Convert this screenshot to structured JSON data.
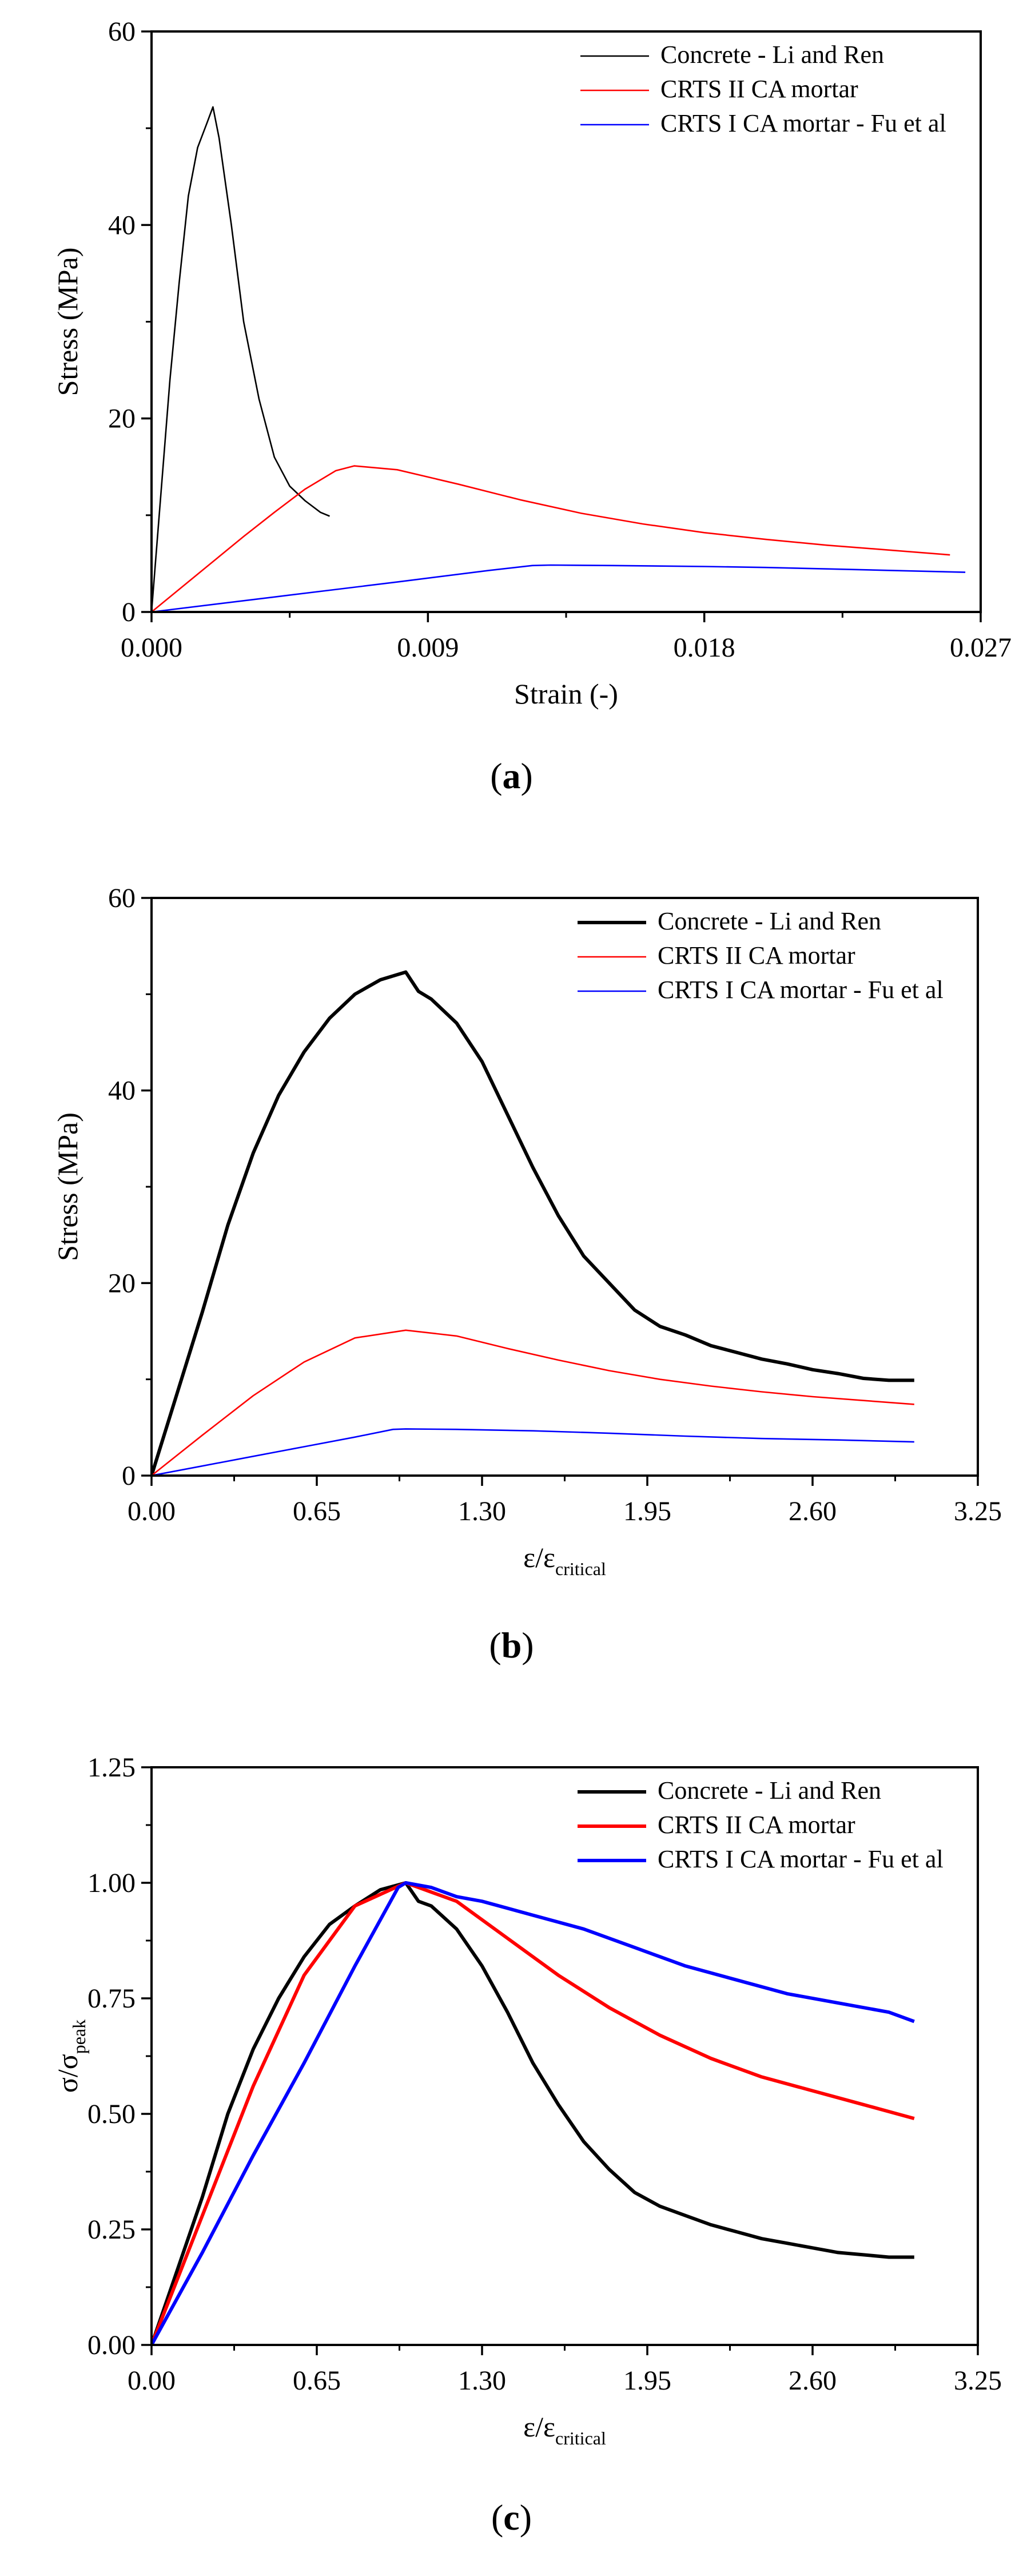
{
  "chart_data": [
    {
      "type": "line",
      "panel_label": "a",
      "xlabel": "Strain (-)",
      "ylabel": "Stress (MPa)",
      "xlim": [
        0,
        0.027
      ],
      "ylim": [
        0,
        60
      ],
      "xticks": [
        0.0,
        0.009,
        0.018,
        0.027
      ],
      "xtick_labels": [
        "0.000",
        "0.009",
        "0.018",
        "0.027"
      ],
      "yticks": [
        0,
        20,
        40,
        60
      ],
      "ytick_labels": [
        "0",
        "20",
        "40",
        "60"
      ],
      "legend_position": "top-right",
      "series": [
        {
          "name": "Concrete - Li and Ren",
          "color": "#000000",
          "width": "thin",
          "x": [
            0,
            0.0003,
            0.0006,
            0.0009,
            0.0012,
            0.0015,
            0.0018,
            0.002,
            0.0022,
            0.0026,
            0.003,
            0.0035,
            0.004,
            0.0045,
            0.005,
            0.0055,
            0.0058
          ],
          "y": [
            0,
            12,
            24,
            34,
            43,
            48,
            50.5,
            52.2,
            49,
            40,
            30,
            22,
            16,
            13,
            11.5,
            10.3,
            9.9
          ]
        },
        {
          "name": "CRTS II CA mortar",
          "color": "#ff0000",
          "width": "thin",
          "x": [
            0,
            0.001,
            0.002,
            0.003,
            0.004,
            0.005,
            0.006,
            0.0066,
            0.008,
            0.01,
            0.012,
            0.014,
            0.016,
            0.018,
            0.02,
            0.022,
            0.024,
            0.026
          ],
          "y": [
            0,
            2.6,
            5.2,
            7.8,
            10.3,
            12.7,
            14.6,
            15.1,
            14.7,
            13.2,
            11.6,
            10.2,
            9.1,
            8.2,
            7.5,
            6.9,
            6.4,
            5.9
          ]
        },
        {
          "name": "CRTS I CA mortar - Fu et al",
          "color": "#0000ff",
          "width": "thin",
          "x": [
            0,
            0.004,
            0.008,
            0.011,
            0.0124,
            0.013,
            0.015,
            0.018,
            0.02,
            0.022,
            0.024,
            0.0265
          ],
          "y": [
            0,
            1.55,
            3.1,
            4.3,
            4.8,
            4.85,
            4.8,
            4.7,
            4.6,
            4.45,
            4.3,
            4.1
          ]
        }
      ]
    },
    {
      "type": "line",
      "panel_label": "b",
      "xlabel": "ε/ε",
      "xlabel_sub": "critical",
      "ylabel": "Stress (MPa)",
      "xlim": [
        0,
        3.25
      ],
      "ylim": [
        0,
        60
      ],
      "xticks": [
        0,
        0.65,
        1.3,
        1.95,
        2.6,
        3.25
      ],
      "xtick_labels": [
        "0.00",
        "0.65",
        "1.30",
        "1.95",
        "2.60",
        "3.25"
      ],
      "yticks": [
        0,
        20,
        40,
        60
      ],
      "ytick_labels": [
        "0",
        "20",
        "40",
        "60"
      ],
      "legend_position": "top-right",
      "series": [
        {
          "name": "Concrete - Li and Ren",
          "color": "#000000",
          "width": "thick",
          "x": [
            0,
            0.1,
            0.2,
            0.3,
            0.4,
            0.5,
            0.6,
            0.7,
            0.8,
            0.9,
            1.0,
            1.05,
            1.1,
            1.2,
            1.3,
            1.4,
            1.5,
            1.6,
            1.7,
            1.8,
            1.9,
            2.0,
            2.1,
            2.2,
            2.3,
            2.4,
            2.5,
            2.6,
            2.7,
            2.8,
            2.9,
            3.0
          ],
          "y": [
            0,
            8.5,
            17,
            26,
            33.5,
            39.5,
            44,
            47.5,
            50,
            51.5,
            52.3,
            50.3,
            49.5,
            47,
            43,
            37.5,
            32,
            27,
            22.8,
            20,
            17.2,
            15.5,
            14.6,
            13.5,
            12.8,
            12.1,
            11.6,
            11.0,
            10.6,
            10.1,
            9.9,
            9.9
          ]
        },
        {
          "name": "CRTS II CA mortar",
          "color": "#ff0000",
          "width": "thin",
          "x": [
            0,
            0.2,
            0.4,
            0.6,
            0.8,
            1.0,
            1.2,
            1.4,
            1.6,
            1.8,
            2.0,
            2.2,
            2.4,
            2.6,
            2.8,
            3.0
          ],
          "y": [
            0,
            4.2,
            8.3,
            11.8,
            14.3,
            15.1,
            14.5,
            13.2,
            12.0,
            10.9,
            10.0,
            9.3,
            8.7,
            8.2,
            7.8,
            7.4
          ]
        },
        {
          "name": "CRTS I CA mortar - Fu et al",
          "color": "#0000ff",
          "width": "thin",
          "x": [
            0,
            0.2,
            0.4,
            0.6,
            0.8,
            0.95,
            1.0,
            1.2,
            1.5,
            1.8,
            2.1,
            2.4,
            2.7,
            3.0
          ],
          "y": [
            0,
            1.0,
            2.0,
            3.0,
            4.0,
            4.8,
            4.85,
            4.8,
            4.65,
            4.4,
            4.1,
            3.85,
            3.7,
            3.5
          ]
        }
      ]
    },
    {
      "type": "line",
      "panel_label": "c",
      "xlabel": "ε/ε",
      "xlabel_sub": "critical",
      "ylabel": "σ/σ",
      "ylabel_sub": "peak",
      "xlim": [
        0,
        3.25
      ],
      "ylim": [
        0,
        1.25
      ],
      "xticks": [
        0,
        0.65,
        1.3,
        1.95,
        2.6,
        3.25
      ],
      "xtick_labels": [
        "0.00",
        "0.65",
        "1.30",
        "1.95",
        "2.60",
        "3.25"
      ],
      "yticks": [
        0,
        0.25,
        0.5,
        0.75,
        1.0,
        1.25
      ],
      "ytick_labels": [
        "0.00",
        "0.25",
        "0.50",
        "0.75",
        "1.00",
        "1.25"
      ],
      "legend_position": "top-right",
      "series": [
        {
          "name": "Concrete - Li and Ren",
          "color": "#000000",
          "width": "thick",
          "x": [
            0,
            0.1,
            0.2,
            0.3,
            0.4,
            0.5,
            0.6,
            0.7,
            0.8,
            0.9,
            1.0,
            1.05,
            1.1,
            1.2,
            1.3,
            1.4,
            1.5,
            1.6,
            1.7,
            1.8,
            1.9,
            2.0,
            2.1,
            2.2,
            2.3,
            2.4,
            2.5,
            2.6,
            2.7,
            2.8,
            2.9,
            3.0
          ],
          "y": [
            0,
            0.16,
            0.32,
            0.5,
            0.64,
            0.75,
            0.84,
            0.91,
            0.95,
            0.985,
            1.0,
            0.96,
            0.95,
            0.9,
            0.82,
            0.72,
            0.61,
            0.52,
            0.44,
            0.38,
            0.33,
            0.3,
            0.28,
            0.26,
            0.245,
            0.23,
            0.22,
            0.21,
            0.2,
            0.195,
            0.19,
            0.19
          ]
        },
        {
          "name": "CRTS II CA mortar",
          "color": "#ff0000",
          "width": "thick",
          "x": [
            0,
            0.2,
            0.4,
            0.6,
            0.8,
            1.0,
            1.2,
            1.4,
            1.6,
            1.8,
            2.0,
            2.2,
            2.4,
            2.6,
            2.8,
            3.0
          ],
          "y": [
            0,
            0.28,
            0.56,
            0.8,
            0.95,
            1.0,
            0.96,
            0.88,
            0.8,
            0.73,
            0.67,
            0.62,
            0.58,
            0.55,
            0.52,
            0.49
          ]
        },
        {
          "name": "CRTS I CA mortar - Fu et al",
          "color": "#0000ff",
          "width": "thick",
          "x": [
            0,
            0.2,
            0.4,
            0.6,
            0.8,
            0.97,
            1.0,
            1.1,
            1.2,
            1.3,
            1.5,
            1.7,
            1.9,
            2.1,
            2.3,
            2.5,
            2.7,
            2.9,
            3.0
          ],
          "y": [
            0,
            0.2,
            0.41,
            0.61,
            0.82,
            0.99,
            1.0,
            0.99,
            0.97,
            0.96,
            0.93,
            0.9,
            0.86,
            0.82,
            0.79,
            0.76,
            0.74,
            0.72,
            0.7
          ]
        }
      ]
    }
  ]
}
